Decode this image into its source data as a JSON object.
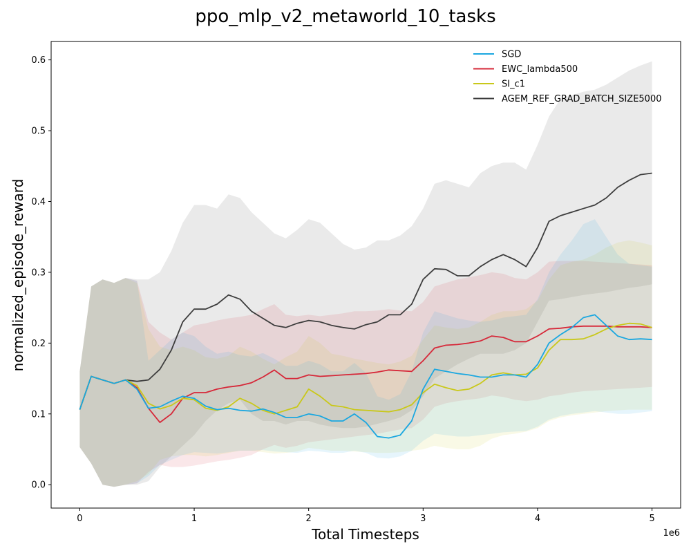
{
  "chart_data": {
    "type": "line",
    "title": "ppo_mlp_v2_metaworld_10_tasks",
    "xlabel": "Total Timesteps",
    "ylabel": "normalized_episode_reward",
    "x_scale_label": "1e6",
    "xlim": [
      -0.25,
      5.25
    ],
    "ylim": [
      -0.033,
      0.626
    ],
    "xticks": [
      0,
      1,
      2,
      3,
      4,
      5
    ],
    "xtick_labels": [
      "0",
      "1",
      "2",
      "3",
      "4",
      "5"
    ],
    "yticks": [
      0.0,
      0.1,
      0.2,
      0.3,
      0.4,
      0.5,
      0.6
    ],
    "ytick_labels": [
      "0.0",
      "0.1",
      "0.2",
      "0.3",
      "0.4",
      "0.5",
      "0.6"
    ],
    "grid": false,
    "legend_position": "top-right",
    "x": [
      0,
      0.1,
      0.2,
      0.3,
      0.4,
      0.5,
      0.6,
      0.7,
      0.8,
      0.9,
      1.0,
      1.1,
      1.2,
      1.3,
      1.4,
      1.5,
      1.6,
      1.7,
      1.8,
      1.9,
      2.0,
      2.1,
      2.2,
      2.3,
      2.4,
      2.5,
      2.6,
      2.7,
      2.8,
      2.9,
      3.0,
      3.1,
      3.2,
      3.3,
      3.4,
      3.5,
      3.6,
      3.7,
      3.8,
      3.9,
      4.0,
      4.1,
      4.2,
      4.3,
      4.4,
      4.5,
      4.6,
      4.7,
      4.8,
      4.9,
      5.0
    ],
    "series": [
      {
        "name": "SGD",
        "color": "#1aa7e0",
        "values": [
          0.106,
          0.153,
          0.148,
          0.143,
          0.148,
          0.135,
          0.108,
          0.11,
          0.118,
          0.125,
          0.122,
          0.111,
          0.106,
          0.108,
          0.105,
          0.104,
          0.107,
          0.102,
          0.095,
          0.095,
          0.1,
          0.097,
          0.09,
          0.09,
          0.1,
          0.088,
          0.068,
          0.066,
          0.07,
          0.09,
          0.135,
          0.163,
          0.16,
          0.157,
          0.155,
          0.152,
          0.152,
          0.155,
          0.155,
          0.152,
          0.17,
          0.2,
          0.212,
          0.222,
          0.236,
          0.24,
          0.225,
          0.21,
          0.205,
          0.206,
          0.205
        ],
        "lower": [
          0.053,
          0.03,
          0.0,
          -0.003,
          0.0,
          0.002,
          0.012,
          0.028,
          0.035,
          0.042,
          0.046,
          0.045,
          0.044,
          0.046,
          0.048,
          0.048,
          0.049,
          0.047,
          0.046,
          0.045,
          0.048,
          0.047,
          0.045,
          0.045,
          0.048,
          0.045,
          0.038,
          0.037,
          0.04,
          0.048,
          0.062,
          0.072,
          0.07,
          0.068,
          0.068,
          0.07,
          0.072,
          0.074,
          0.075,
          0.076,
          0.082,
          0.092,
          0.097,
          0.1,
          0.102,
          0.104,
          0.102,
          0.1,
          0.1,
          0.102,
          0.104
        ],
        "upper": [
          0.16,
          0.28,
          0.29,
          0.285,
          0.292,
          0.288,
          0.175,
          0.19,
          0.205,
          0.215,
          0.21,
          0.195,
          0.185,
          0.188,
          0.183,
          0.181,
          0.186,
          0.178,
          0.168,
          0.168,
          0.175,
          0.17,
          0.16,
          0.16,
          0.172,
          0.158,
          0.125,
          0.12,
          0.128,
          0.16,
          0.215,
          0.245,
          0.24,
          0.235,
          0.232,
          0.23,
          0.232,
          0.236,
          0.238,
          0.24,
          0.262,
          0.3,
          0.325,
          0.345,
          0.368,
          0.375,
          0.35,
          0.325,
          0.312,
          0.31,
          0.308
        ]
      },
      {
        "name": "EWC_lambda500",
        "color": "#d62839",
        "values": [
          0.106,
          0.153,
          0.148,
          0.143,
          0.148,
          0.137,
          0.108,
          0.088,
          0.1,
          0.122,
          0.13,
          0.13,
          0.135,
          0.138,
          0.14,
          0.144,
          0.152,
          0.162,
          0.15,
          0.15,
          0.155,
          0.153,
          0.154,
          0.155,
          0.156,
          0.157,
          0.159,
          0.162,
          0.161,
          0.16,
          0.175,
          0.193,
          0.197,
          0.198,
          0.2,
          0.203,
          0.21,
          0.208,
          0.202,
          0.202,
          0.21,
          0.22,
          0.221,
          0.223,
          0.224,
          0.224,
          0.224,
          0.223,
          0.223,
          0.223,
          0.222
        ],
        "lower": [
          0.053,
          0.03,
          0.0,
          -0.003,
          0.0,
          0.002,
          0.018,
          0.028,
          0.025,
          0.025,
          0.027,
          0.03,
          0.033,
          0.035,
          0.038,
          0.042,
          0.05,
          0.056,
          0.052,
          0.055,
          0.06,
          0.062,
          0.064,
          0.066,
          0.068,
          0.07,
          0.072,
          0.075,
          0.078,
          0.08,
          0.092,
          0.11,
          0.115,
          0.118,
          0.12,
          0.122,
          0.126,
          0.124,
          0.12,
          0.118,
          0.12,
          0.125,
          0.127,
          0.13,
          0.132,
          0.133,
          0.134,
          0.135,
          0.136,
          0.137,
          0.138
        ],
        "upper": [
          0.16,
          0.28,
          0.29,
          0.285,
          0.292,
          0.288,
          0.23,
          0.215,
          0.205,
          0.215,
          0.225,
          0.228,
          0.232,
          0.235,
          0.237,
          0.24,
          0.248,
          0.255,
          0.24,
          0.238,
          0.24,
          0.238,
          0.24,
          0.242,
          0.245,
          0.245,
          0.246,
          0.248,
          0.246,
          0.245,
          0.258,
          0.28,
          0.285,
          0.29,
          0.293,
          0.296,
          0.3,
          0.298,
          0.292,
          0.29,
          0.3,
          0.315,
          0.316,
          0.316,
          0.316,
          0.315,
          0.314,
          0.313,
          0.312,
          0.311,
          0.31
        ]
      },
      {
        "name": "SI_c1",
        "color": "#c9c81a",
        "values": [
          0.106,
          0.153,
          0.148,
          0.143,
          0.148,
          0.14,
          0.115,
          0.107,
          0.112,
          0.122,
          0.12,
          0.108,
          0.105,
          0.11,
          0.122,
          0.115,
          0.105,
          0.1,
          0.105,
          0.11,
          0.135,
          0.125,
          0.112,
          0.11,
          0.106,
          0.105,
          0.104,
          0.103,
          0.106,
          0.113,
          0.13,
          0.142,
          0.137,
          0.133,
          0.135,
          0.143,
          0.155,
          0.158,
          0.155,
          0.156,
          0.165,
          0.19,
          0.205,
          0.205,
          0.206,
          0.212,
          0.22,
          0.225,
          0.228,
          0.227,
          0.222
        ],
        "lower": [
          0.053,
          0.03,
          0.0,
          -0.003,
          0.0,
          0.005,
          0.015,
          0.035,
          0.04,
          0.042,
          0.042,
          0.04,
          0.042,
          0.045,
          0.048,
          0.048,
          0.046,
          0.044,
          0.045,
          0.047,
          0.052,
          0.05,
          0.048,
          0.048,
          0.047,
          0.046,
          0.045,
          0.045,
          0.046,
          0.048,
          0.05,
          0.055,
          0.052,
          0.05,
          0.05,
          0.055,
          0.065,
          0.07,
          0.072,
          0.075,
          0.08,
          0.09,
          0.095,
          0.098,
          0.1,
          0.102,
          0.104,
          0.105,
          0.106,
          0.106,
          0.106
        ],
        "upper": [
          0.16,
          0.28,
          0.29,
          0.285,
          0.292,
          0.285,
          0.22,
          0.195,
          0.19,
          0.195,
          0.19,
          0.18,
          0.178,
          0.182,
          0.195,
          0.188,
          0.178,
          0.17,
          0.18,
          0.188,
          0.21,
          0.2,
          0.185,
          0.182,
          0.178,
          0.175,
          0.172,
          0.17,
          0.174,
          0.182,
          0.205,
          0.225,
          0.222,
          0.22,
          0.222,
          0.23,
          0.24,
          0.245,
          0.245,
          0.248,
          0.26,
          0.29,
          0.31,
          0.315,
          0.318,
          0.325,
          0.335,
          0.342,
          0.345,
          0.342,
          0.338
        ]
      },
      {
        "name": "AGEM_REF_GRAD_BATCH_SIZE5000",
        "color": "#3d3d3d",
        "values": [
          0.106,
          0.153,
          0.148,
          0.143,
          0.148,
          0.146,
          0.148,
          0.163,
          0.19,
          0.23,
          0.248,
          0.248,
          0.255,
          0.268,
          0.262,
          0.245,
          0.235,
          0.225,
          0.222,
          0.228,
          0.232,
          0.23,
          0.225,
          0.222,
          0.22,
          0.226,
          0.23,
          0.24,
          0.24,
          0.255,
          0.29,
          0.305,
          0.304,
          0.295,
          0.295,
          0.308,
          0.318,
          0.325,
          0.318,
          0.308,
          0.335,
          0.372,
          0.38,
          0.385,
          0.39,
          0.395,
          0.405,
          0.42,
          0.43,
          0.438,
          0.44
        ],
        "lower": [
          0.053,
          0.03,
          0.0,
          -0.003,
          0.0,
          0.0,
          0.005,
          0.025,
          0.04,
          0.055,
          0.07,
          0.09,
          0.105,
          0.115,
          0.12,
          0.1,
          0.09,
          0.09,
          0.085,
          0.09,
          0.09,
          0.085,
          0.082,
          0.08,
          0.08,
          0.082,
          0.086,
          0.09,
          0.095,
          0.105,
          0.125,
          0.15,
          0.16,
          0.17,
          0.178,
          0.185,
          0.185,
          0.185,
          0.19,
          0.2,
          0.23,
          0.26,
          0.262,
          0.265,
          0.268,
          0.27,
          0.272,
          0.275,
          0.278,
          0.28,
          0.283
        ],
        "upper": [
          0.16,
          0.28,
          0.29,
          0.285,
          0.292,
          0.29,
          0.29,
          0.3,
          0.33,
          0.37,
          0.395,
          0.395,
          0.39,
          0.41,
          0.405,
          0.385,
          0.37,
          0.355,
          0.348,
          0.36,
          0.375,
          0.37,
          0.355,
          0.34,
          0.332,
          0.335,
          0.345,
          0.345,
          0.352,
          0.365,
          0.39,
          0.425,
          0.43,
          0.425,
          0.42,
          0.44,
          0.45,
          0.455,
          0.455,
          0.445,
          0.48,
          0.52,
          0.545,
          0.55,
          0.555,
          0.558,
          0.565,
          0.575,
          0.585,
          0.592,
          0.598
        ]
      }
    ]
  }
}
